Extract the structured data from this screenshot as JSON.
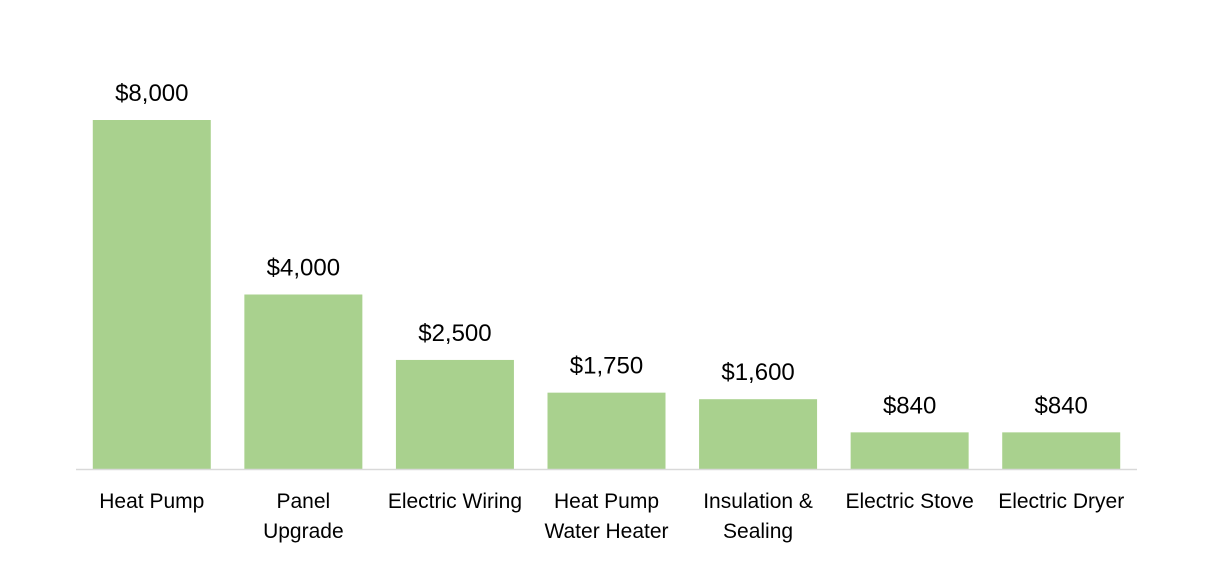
{
  "chart_data": {
    "type": "bar",
    "title": "",
    "xlabel": "",
    "ylabel": "",
    "categories": [
      [
        "Heat Pump"
      ],
      [
        "Panel",
        "Upgrade"
      ],
      [
        "Electric Wiring"
      ],
      [
        "Heat Pump",
        "Water Heater"
      ],
      [
        "Insulation &",
        "Sealing"
      ],
      [
        "Electric Stove"
      ],
      [
        "Electric Dryer"
      ]
    ],
    "values": [
      8000,
      4000,
      2500,
      1750,
      1600,
      840,
      840
    ],
    "data_labels": [
      "$8,000",
      "$4,000",
      "$2,500",
      "$1,750",
      "$1,600",
      "$840",
      "$840"
    ],
    "ylim": [
      0,
      8000
    ],
    "grid": false,
    "legend": "none",
    "colors": {
      "bar": "#a9d18e",
      "axis": "#d9d9d9"
    }
  }
}
